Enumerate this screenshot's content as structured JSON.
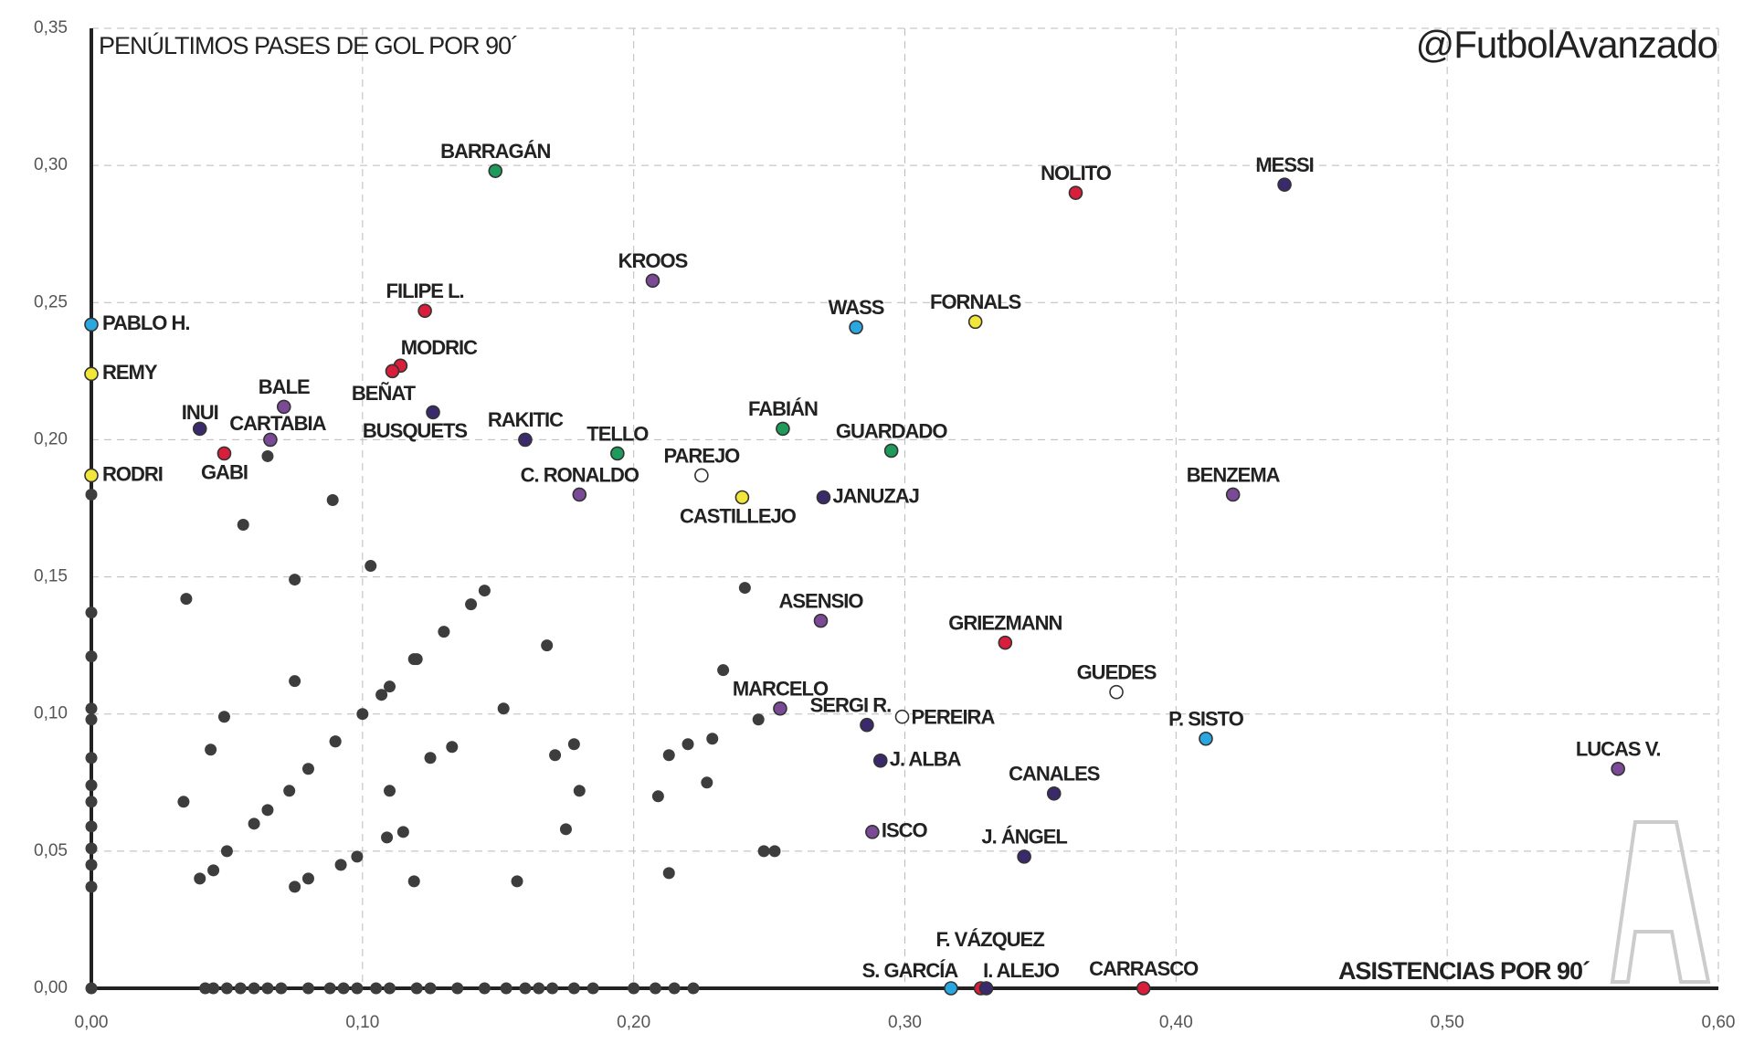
{
  "chart_data": {
    "type": "scatter",
    "title": "PENÚLTIMOS PASES DE GOL POR 90´",
    "x_label": "ASISTENCIAS POR 90´",
    "annotation": "@FutbolAvanzado",
    "xlim": [
      0,
      0.6
    ],
    "ylim": [
      0,
      0.35
    ],
    "xticks": [
      {
        "value": 0,
        "label": "0,00"
      },
      {
        "value": 0.1,
        "label": "0,10"
      },
      {
        "value": 0.2,
        "label": "0,20"
      },
      {
        "value": 0.3,
        "label": "0,30"
      },
      {
        "value": 0.4,
        "label": "0,40"
      },
      {
        "value": 0.5,
        "label": "0,50"
      },
      {
        "value": 0.6,
        "label": "0,60"
      }
    ],
    "yticks": [
      {
        "value": 0,
        "label": "0,00"
      },
      {
        "value": 0.05,
        "label": "0,05"
      },
      {
        "value": 0.1,
        "label": "0,10"
      },
      {
        "value": 0.15,
        "label": "0,15"
      },
      {
        "value": 0.2,
        "label": "0,20"
      },
      {
        "value": 0.25,
        "label": "0,25"
      },
      {
        "value": 0.3,
        "label": "0,30"
      },
      {
        "value": 0.35,
        "label": "0,35"
      }
    ],
    "grid": true,
    "labels": [
      "BARRAGÁN",
      "NOLITO",
      "MESSI",
      "KROOS",
      "FILIPE L.",
      "WASS",
      "FORNALS",
      "PABLO H.",
      "REMY",
      "MODRIC",
      "BEÑAT",
      "BALE",
      "INUI",
      "CARTABIA",
      "BUSQUETS",
      "RAKITIC",
      "TELLO",
      "FABIÁN",
      "GUARDADO",
      "GABI",
      "RODRI",
      "PAREJO",
      "C. RONALDO",
      "CASTILLEJO",
      "JANUZAJ",
      "BENZEMA",
      "ASENSIO",
      "GRIEZMANN",
      "GUEDES",
      "MARCELO",
      "SERGI R.",
      "PEREIRA",
      "P. SISTO",
      "LUCAS V.",
      "J. ALBA",
      "CANALES",
      "ISCO",
      "J. ÁNGEL",
      "S. GARCÍA",
      "F. VÁZQUEZ",
      "I. ALEJO",
      "CARRASCO",
      null,
      null,
      null,
      null,
      null,
      null,
      null,
      null,
      null,
      null,
      null,
      null,
      null,
      null,
      null,
      null,
      null,
      null,
      null,
      null,
      null,
      null,
      null,
      null,
      null,
      null,
      null,
      null,
      null,
      null,
      null,
      null,
      null,
      null,
      null,
      null,
      null,
      null,
      null,
      null,
      null,
      null,
      null,
      null,
      null,
      null,
      null,
      null,
      null,
      null,
      null,
      null,
      null,
      null,
      null,
      null,
      null,
      null,
      null,
      null,
      null,
      null,
      null,
      null,
      null,
      null,
      null,
      null,
      null,
      null,
      null,
      null,
      null,
      null,
      null,
      null,
      null,
      null,
      null,
      null,
      null,
      null,
      null,
      null,
      null,
      null,
      null,
      null,
      null,
      null,
      null,
      null,
      null,
      null,
      null,
      null,
      null
    ],
    "x": [
      0.149,
      0.363,
      0.44,
      0.207,
      0.123,
      0.282,
      0.326,
      0,
      0,
      0.114,
      0.111,
      0.071,
      0.04,
      0.066,
      0.126,
      0.16,
      0.194,
      0.255,
      0.295,
      0.049,
      0,
      0.225,
      0.18,
      0.24,
      0.27,
      0.421,
      0.269,
      0.337,
      0.378,
      0.254,
      0.286,
      0.299,
      0.411,
      0.563,
      0.291,
      0.355,
      0.288,
      0.344,
      0.317,
      0.328,
      0.33,
      0.388,
      0,
      0,
      0,
      0,
      0,
      0,
      0,
      0,
      0,
      0,
      0,
      0,
      0.035,
      0.034,
      0.044,
      0.049,
      0.056,
      0.065,
      0.075,
      0.075,
      0.089,
      0.103,
      0.09,
      0.107,
      0.119,
      0.168,
      0.152,
      0.241,
      0.233,
      0.22,
      0.229,
      0.213,
      0.178,
      0.171,
      0.18,
      0.175,
      0.209,
      0.227,
      0.246,
      0.213,
      0.157,
      0.248,
      0.252,
      0.11,
      0.115,
      0.109,
      0.125,
      0.133,
      0.098,
      0.092,
      0.08,
      0.075,
      0.119,
      0.073,
      0.04,
      0.045,
      0.05,
      0.06,
      0.065,
      0.08,
      0.09,
      0.1,
      0.11,
      0.12,
      0.13,
      0.14,
      0.145,
      0,
      0.042,
      0.045,
      0.05,
      0.055,
      0.06,
      0.065,
      0.07,
      0.08,
      0.088,
      0.093,
      0.098,
      0.105,
      0.11,
      0.12,
      0.125,
      0.135,
      0.145,
      0.153,
      0.16,
      0.165,
      0.17,
      0.178,
      0.185,
      0.2,
      0.208,
      0.215,
      0.222
    ],
    "y": [
      0.298,
      0.29,
      0.293,
      0.258,
      0.247,
      0.241,
      0.243,
      0.242,
      0.224,
      0.227,
      0.225,
      0.212,
      0.204,
      0.2,
      0.21,
      0.2,
      0.195,
      0.204,
      0.196,
      0.195,
      0.187,
      0.187,
      0.18,
      0.179,
      0.179,
      0.18,
      0.134,
      0.126,
      0.108,
      0.102,
      0.096,
      0.099,
      0.091,
      0.08,
      0.083,
      0.071,
      0.057,
      0.048,
      0,
      0,
      0,
      0,
      0.18,
      0.137,
      0.121,
      0.102,
      0.098,
      0.084,
      0.074,
      0.068,
      0.059,
      0.051,
      0.045,
      0.037,
      0.142,
      0.068,
      0.087,
      0.099,
      0.169,
      0.194,
      0.149,
      0.112,
      0.178,
      0.154,
      0.09,
      0.107,
      0.12,
      0.125,
      0.102,
      0.146,
      0.116,
      0.089,
      0.091,
      0.085,
      0.089,
      0.085,
      0.072,
      0.058,
      0.07,
      0.075,
      0.098,
      0.042,
      0.039,
      0.05,
      0.05,
      0.072,
      0.057,
      0.055,
      0.084,
      0.088,
      0.048,
      0.045,
      0.04,
      0.037,
      0.039,
      0.072,
      0.04,
      0.043,
      0.05,
      0.06,
      0.065,
      0.08,
      0.09,
      0.1,
      0.11,
      0.12,
      0.13,
      0.14,
      0.145,
      0,
      0,
      0,
      0,
      0,
      0,
      0,
      0,
      0,
      0,
      0,
      0,
      0,
      0,
      0,
      0,
      0,
      0,
      0,
      0,
      0,
      0,
      0,
      0,
      0,
      0,
      0,
      0
    ],
    "colors": [
      "#1e9a5a",
      "#d81e3a",
      "#3b2a6b",
      "#7b4a96",
      "#d81e3a",
      "#2aa7e0",
      "#f2e63a",
      "#2aa7e0",
      "#f2e63a",
      "#d81e3a",
      "#d81e3a",
      "#7b4a96",
      "#3b2a6b",
      "#7b4a96",
      "#3b2a6b",
      "#3b2a6b",
      "#1e9a5a",
      "#1e9a5a",
      "#1e9a5a",
      "#d81e3a",
      "#f2e63a",
      "#ffffff",
      "#7b4a96",
      "#f2e63a",
      "#3b2a6b",
      "#7b4a96",
      "#7b4a96",
      "#d81e3a",
      "#ffffff",
      "#7b4a96",
      "#3b2a6b",
      "#ffffff",
      "#2aa7e0",
      "#7b4a96",
      "#3b2a6b",
      "#3b2a6b",
      "#7b4a96",
      "#3b2a6b",
      "#2aa7e0",
      "#d81e3a",
      "#3b2a6b",
      "#d81e3a"
    ],
    "other_color": "#3d3d3d"
  }
}
